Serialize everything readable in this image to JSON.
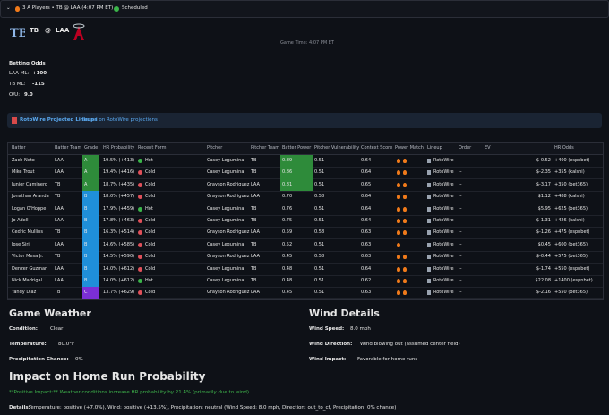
{
  "header": {
    "text": "3 A Players • TB @ LAA (4:07 PM ET)",
    "status": "Scheduled"
  },
  "matchup": {
    "away": "TB",
    "at": "@",
    "home": "LAA",
    "game_time": "Game Time: 4:07 PM ET"
  },
  "betting": {
    "title": "Betting Odds",
    "lines": [
      {
        "label": "LAA ML:",
        "value": "+100"
      },
      {
        "label": "TB ML:",
        "value": "-115"
      },
      {
        "label": "O/U:",
        "value": "9.0"
      }
    ]
  },
  "banner": {
    "link": "RotoWire Projected Lineups",
    "text": "- Based on RotoWire projections"
  },
  "table": {
    "headers": [
      "Batter",
      "Batter Team",
      "Grade",
      "HR Probability",
      "Recent Form",
      "Pitcher",
      "Pitcher Team",
      "Batter Power",
      "Pitcher Vulnerability",
      "Context Score",
      "Power Match",
      "Lineup",
      "Order",
      "EV",
      "HR Odds"
    ],
    "rows": [
      [
        "Zach Neto",
        "LAA",
        "A",
        "19.5% (+413)",
        "Hot",
        "Casey Legumina",
        "TB",
        "0.89",
        "0.51",
        "0.64",
        2,
        "RotoWire",
        "--",
        "$-0.52",
        "+400 (espnbet)"
      ],
      [
        "Mike Trout",
        "LAA",
        "A",
        "19.4% (+416)",
        "Cold",
        "Casey Legumina",
        "TB",
        "0.86",
        "0.51",
        "0.64",
        2,
        "RotoWire",
        "--",
        "$-2.35",
        "+355 (kalshi)"
      ],
      [
        "Junior Caminero",
        "TB",
        "A",
        "18.7% (+435)",
        "Cold",
        "Grayson Rodriguez",
        "LAA",
        "0.81",
        "0.51",
        "0.65",
        2,
        "RotoWire",
        "--",
        "$-3.17",
        "+350 (bet365)"
      ],
      [
        "Jonathan Aranda",
        "TB",
        "B",
        "18.0% (+457)",
        "Cold",
        "Grayson Rodriguez",
        "LAA",
        "0.70",
        "0.58",
        "0.64",
        2,
        "RotoWire",
        "--",
        "$1.12",
        "+488 (kalshi)"
      ],
      [
        "Logan O'Hoppe",
        "LAA",
        "B",
        "17.9% (+459)",
        "Hot",
        "Casey Legumina",
        "TB",
        "0.76",
        "0.51",
        "0.64",
        2,
        "RotoWire",
        "--",
        "$5.95",
        "+625 (bet365)"
      ],
      [
        "Jo Adell",
        "LAA",
        "B",
        "17.8% (+463)",
        "Cold",
        "Casey Legumina",
        "TB",
        "0.75",
        "0.51",
        "0.64",
        2,
        "RotoWire",
        "--",
        "$-1.31",
        "+426 (kalshi)"
      ],
      [
        "Cedric Mullins",
        "TB",
        "B",
        "16.3% (+514)",
        "Cold",
        "Grayson Rodriguez",
        "LAA",
        "0.59",
        "0.58",
        "0.63",
        2,
        "RotoWire",
        "--",
        "$-1.26",
        "+475 (espnbet)"
      ],
      [
        "Jose Siri",
        "LAA",
        "B",
        "14.6% (+585)",
        "Cold",
        "Casey Legumina",
        "TB",
        "0.52",
        "0.51",
        "0.63",
        1,
        "RotoWire",
        "--",
        "$0.45",
        "+600 (bet365)"
      ],
      [
        "Victor Mesa Jr.",
        "TB",
        "B",
        "14.5% (+590)",
        "Cold",
        "Grayson Rodriguez",
        "LAA",
        "0.45",
        "0.58",
        "0.63",
        2,
        "RotoWire",
        "--",
        "$-0.44",
        "+575 (bet365)"
      ],
      [
        "Denzer Guzman",
        "LAA",
        "B",
        "14.0% (+612)",
        "Cold",
        "Casey Legumina",
        "TB",
        "0.48",
        "0.51",
        "0.64",
        2,
        "RotoWire",
        "--",
        "$-1.74",
        "+550 (espnbet)"
      ],
      [
        "Nick Madrigal",
        "LAA",
        "B",
        "14.0% (+612)",
        "Hot",
        "Casey Legumina",
        "TB",
        "0.48",
        "0.51",
        "0.62",
        2,
        "RotoWire",
        "--",
        "$22.08",
        "+1400 (espnbet)"
      ],
      [
        "Yandy Diaz",
        "TB",
        "C",
        "13.7% (+629)",
        "Cold",
        "Grayson Rodriguez",
        "LAA",
        "0.45",
        "0.51",
        "0.63",
        2,
        "RotoWire",
        "--",
        "$-2.16",
        "+550 (bet365)"
      ]
    ]
  },
  "weather": {
    "title": "Game Weather",
    "lines": [
      {
        "label": "Condition:",
        "value": "Clear"
      },
      {
        "label": "Temperature:",
        "value": "80.0°F"
      },
      {
        "label": "Precipitation Chance:",
        "value": "0%"
      }
    ]
  },
  "wind": {
    "title": "Wind Details",
    "lines": [
      {
        "label": "Wind Speed:",
        "value": "8.0 mph"
      },
      {
        "label": "Wind Direction:",
        "value": "Wind blowing out (assumed center field)"
      },
      {
        "label": "Wind Impact:",
        "value": "Favorable for home runs"
      }
    ]
  },
  "impact": {
    "title": "Impact on Home Run Probability",
    "positive": "**Positive Impact:** Weather conditions increase HR probability by 21.4% (primarily due to wind)",
    "details_label": "Details:",
    "details": "Temperature: positive (+7.0%), Wind: positive (+13.5%), Precipitation: neutral (Wind Speed: 8.0 mph, Direction: out_to_cf, Precipitation: 0% chance)"
  }
}
